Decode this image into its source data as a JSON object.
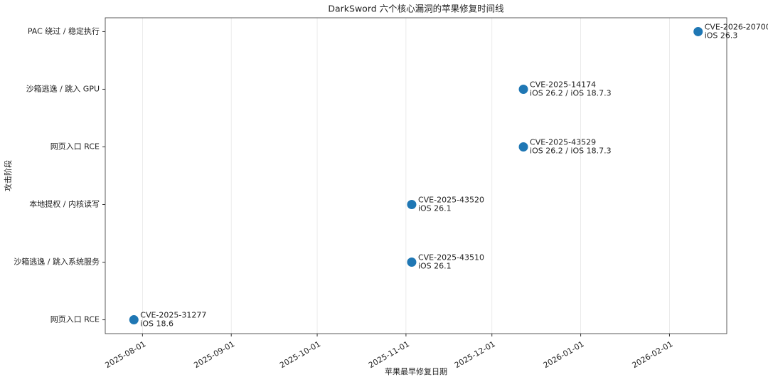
{
  "chart_data": {
    "type": "scatter",
    "title": "DarkSword 六个核心漏洞的苹果修复时间线",
    "xlabel": "苹果最早修复日期",
    "ylabel": "攻击阶段",
    "categories": [
      "网页入口 RCE",
      "沙箱逃逸 / 跳入系统服务",
      "本地提权 / 内核读写",
      "网页入口 RCE",
      "沙箱逃逸 / 跳入 GPU",
      "PAC 绕过 / 稳定执行"
    ],
    "x": [
      "2025-07-29",
      "2025-11-03",
      "2025-11-03",
      "2025-12-12",
      "2025-12-12",
      "2026-02-11"
    ],
    "annotations": [
      [
        "CVE-2025-31277",
        "iOS 18.6"
      ],
      [
        "CVE-2025-43510",
        "iOS 26.1"
      ],
      [
        "CVE-2025-43520",
        "iOS 26.1"
      ],
      [
        "CVE-2025-43529",
        "iOS 26.2 / iOS 18.7.3"
      ],
      [
        "CVE-2025-14174",
        "iOS 26.2 / iOS 18.7.3"
      ],
      [
        "CVE-2026-20700",
        "iOS 26.3"
      ]
    ],
    "color": "#1f77b4",
    "xlim": [
      "2025-07-19",
      "2026-02-21"
    ],
    "xticks": [
      "2025-08-01",
      "2025-09-01",
      "2025-10-01",
      "2025-11-01",
      "2025-12-01",
      "2026-01-01",
      "2026-02-01"
    ],
    "grid": "x"
  }
}
